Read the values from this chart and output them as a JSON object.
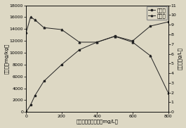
{
  "x": [
    0,
    25,
    50,
    100,
    200,
    300,
    400,
    500,
    600,
    700,
    800
  ],
  "zinc_y": [
    0,
    1200,
    2800,
    5200,
    8000,
    10500,
    11800,
    12800,
    12000,
    14500,
    15200
  ],
  "biomass_y": [
    8.2,
    9.8,
    9.5,
    8.7,
    8.5,
    7.2,
    7.2,
    7.8,
    7.2,
    5.8,
    2.0
  ],
  "left_ylabel": "锂含量（mg/kg）",
  "right_ylabel": "生物量（g/L）",
  "xlabel": "培养基中的锂浓度（mg/L）",
  "legend_zinc": "锂含量",
  "legend_biomass": "生物量",
  "left_ylim": [
    0,
    18000
  ],
  "left_yticks": [
    0,
    2000,
    4000,
    6000,
    8000,
    10000,
    12000,
    14000,
    16000,
    18000
  ],
  "right_ylim": [
    0,
    11
  ],
  "right_yticks": [
    0,
    1,
    2,
    3,
    4,
    5,
    6,
    7,
    8,
    9,
    10,
    11
  ],
  "xlim": [
    0,
    800
  ],
  "xticks": [
    0,
    200,
    400,
    600,
    800
  ],
  "line_color": "#222222",
  "marker1": "s",
  "marker2": "^",
  "bg_color": "#ddd8c4",
  "axis_fontsize": 5.0,
  "tick_fontsize": 4.5,
  "legend_fontsize": 5.0
}
